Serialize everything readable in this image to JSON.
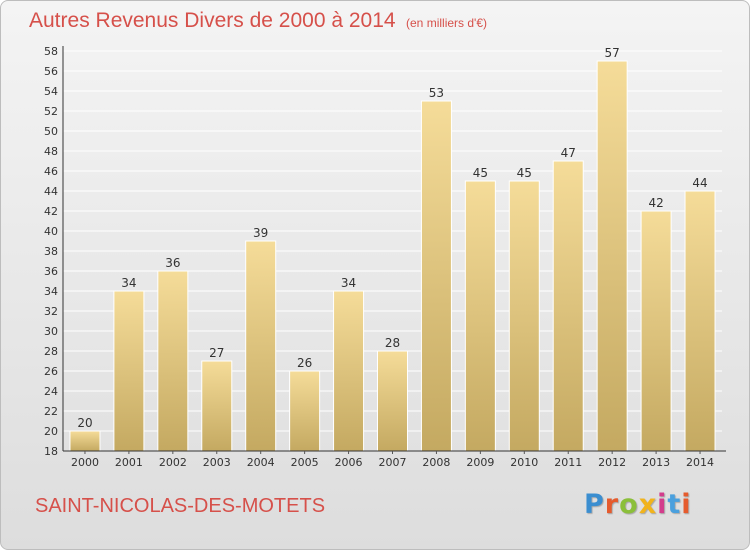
{
  "title": "Autres Revenus Divers de 2000 à 2014",
  "subtitle": "(en milliers d'€)",
  "commune": "SAINT-NICOLAS-DES-MOTETS",
  "logo": {
    "letters": [
      "P",
      "r",
      "o",
      "x",
      "i",
      "t",
      "i"
    ],
    "colors": [
      "#3b8ed0",
      "#e55b2d",
      "#8bbf3a",
      "#f1b31c",
      "#d33c8c",
      "#4aa0de",
      "#e55b2d"
    ]
  },
  "colors": {
    "bar_light": "#f5dc99",
    "bar_dark": "#c4a961",
    "title": "#d6504a"
  },
  "chart_data": {
    "type": "bar",
    "categories": [
      "2000",
      "2001",
      "2002",
      "2003",
      "2004",
      "2005",
      "2006",
      "2007",
      "2008",
      "2009",
      "2010",
      "2011",
      "2012",
      "2013",
      "2014"
    ],
    "values": [
      20,
      34,
      36,
      27,
      39,
      26,
      34,
      28,
      53,
      45,
      45,
      47,
      57,
      42,
      44
    ],
    "ylim": [
      18,
      58
    ],
    "yticks": [
      18,
      20,
      22,
      24,
      26,
      28,
      30,
      32,
      34,
      36,
      38,
      40,
      42,
      44,
      46,
      48,
      50,
      52,
      54,
      56,
      58
    ],
    "grid": true,
    "data_labels": true
  }
}
